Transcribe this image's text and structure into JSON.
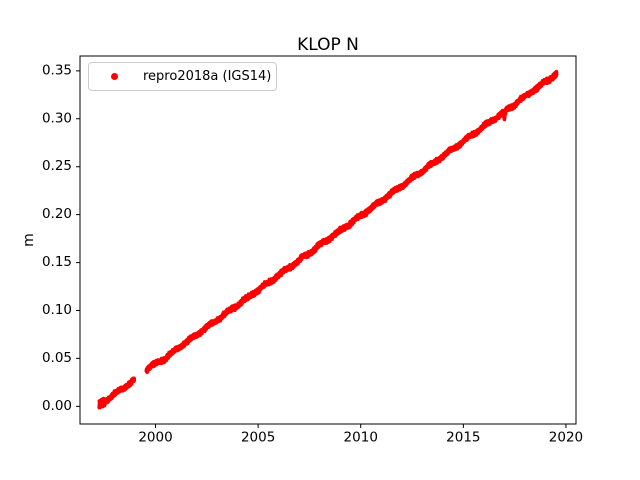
{
  "figure": {
    "background": "#ffffff",
    "text_color": "#000000",
    "spine_color": "#000000",
    "legend_border_color": "#cccccc"
  },
  "chart_data": {
    "type": "scatter",
    "title": "KLOP N",
    "xlabel": "",
    "ylabel": "m",
    "xlim": [
      1996.32,
      2020.49
    ],
    "ylim": [
      -0.0184,
      0.3655
    ],
    "grid": false,
    "xticks": {
      "values": [
        2000,
        2005,
        2010,
        2015,
        2020
      ],
      "labels": [
        "2000",
        "2005",
        "2010",
        "2015",
        "2020"
      ]
    },
    "yticks": {
      "values": [
        0.0,
        0.05,
        0.1,
        0.15,
        0.2,
        0.25,
        0.3,
        0.35
      ],
      "labels": [
        "0.00",
        "0.05",
        "0.10",
        "0.15",
        "0.20",
        "0.25",
        "0.30",
        "0.35"
      ]
    },
    "legend": {
      "label": "repro2018a (IGS14)",
      "location": "upper left",
      "marker_color": "#ff0000"
    },
    "trend_m_per_year": 0.0155,
    "series": [
      {
        "name": "repro2018a (IGS14)",
        "color": "#ff0000",
        "marker": "dot",
        "marker_radius_px": 1.7,
        "sampling_dt_years": 0.003,
        "noise_sigma_m": 0.0011,
        "early_noise": {
          "until": 1997.55,
          "sigma_m": 0.002
        },
        "wiggle": {
          "amplitude_m": 0.001,
          "period_years": 0.9,
          "phase_origin": 1997.0
        },
        "seed": 42,
        "segments": [
          [
            [
              1997.25,
              0.001
            ],
            [
              1997.4,
              0.003
            ],
            [
              1997.55,
              0.0055
            ],
            [
              1997.7,
              0.008
            ],
            [
              1997.85,
              0.0103
            ],
            [
              1998.0,
              0.0125
            ],
            [
              1998.2,
              0.0157
            ],
            [
              1998.4,
              0.0188
            ],
            [
              1998.6,
              0.0219
            ],
            [
              1998.8,
              0.025
            ],
            [
              1998.97,
              0.0276
            ]
          ],
          [
            [
              1999.55,
              0.038
            ],
            [
              1999.8,
              0.042
            ],
            [
              2000.1,
              0.0458
            ],
            [
              2000.5,
              0.0505
            ],
            [
              2001.0,
              0.0592
            ],
            [
              2001.5,
              0.0669
            ],
            [
              2002.0,
              0.0747
            ],
            [
              2002.5,
              0.0825
            ],
            [
              2003.0,
              0.0902
            ],
            [
              2003.5,
              0.098
            ],
            [
              2004.0,
              0.1058
            ],
            [
              2004.5,
              0.1135
            ],
            [
              2005.0,
              0.1213
            ],
            [
              2005.5,
              0.129
            ],
            [
              2006.0,
              0.1368
            ],
            [
              2006.5,
              0.1446
            ],
            [
              2007.0,
              0.1523
            ],
            [
              2007.5,
              0.1601
            ],
            [
              2008.0,
              0.1679
            ],
            [
              2008.5,
              0.1756
            ],
            [
              2009.0,
              0.1834
            ],
            [
              2009.5,
              0.1911
            ],
            [
              2010.0,
              0.1989
            ],
            [
              2010.5,
              0.2067
            ],
            [
              2011.0,
              0.2144
            ],
            [
              2011.5,
              0.2222
            ],
            [
              2012.0,
              0.23
            ],
            [
              2012.5,
              0.2377
            ],
            [
              2013.0,
              0.2455
            ],
            [
              2013.5,
              0.2532
            ],
            [
              2014.0,
              0.261
            ],
            [
              2014.5,
              0.2688
            ],
            [
              2015.0,
              0.2765
            ],
            [
              2015.5,
              0.2843
            ],
            [
              2016.0,
              0.2921
            ],
            [
              2016.5,
              0.2998
            ],
            [
              2016.95,
              0.3068
            ],
            [
              2017.0,
              0.299
            ],
            [
              2017.06,
              0.308
            ],
            [
              2017.5,
              0.3153
            ],
            [
              2018.0,
              0.3231
            ],
            [
              2018.5,
              0.3308
            ],
            [
              2019.0,
              0.3386
            ],
            [
              2019.3,
              0.3432
            ],
            [
              2019.55,
              0.347
            ]
          ]
        ]
      }
    ]
  }
}
